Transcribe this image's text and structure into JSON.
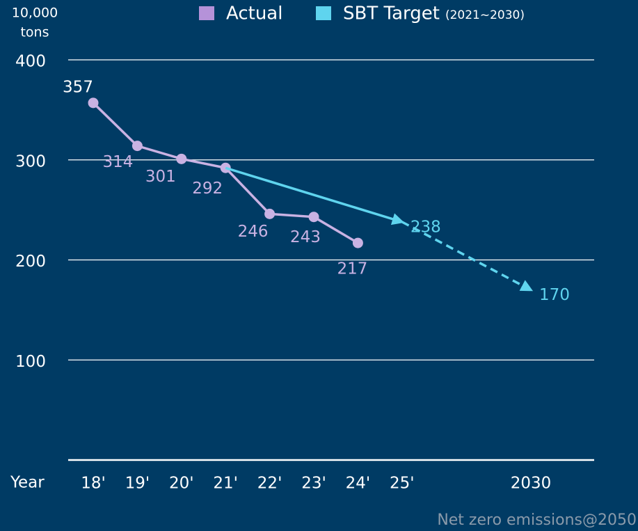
{
  "chart_data": {
    "type": "line",
    "ylabel_lines": [
      "10,000",
      "tons"
    ],
    "xlabel": "Year",
    "categories": [
      "18'",
      "19'",
      "20'",
      "21'",
      "22'",
      "23'",
      "24'",
      "25'",
      "2030"
    ],
    "series": [
      {
        "name": "Actual",
        "color": "#c9b2e3",
        "legend_color": "#b592d9",
        "values": [
          357,
          314,
          301,
          292,
          246,
          243,
          217,
          null,
          null
        ]
      },
      {
        "name": "SBT Target",
        "color": "#5fd4ee",
        "legend_color": "#5fd4ee",
        "legend_note": "(2021~2030)",
        "values": [
          null,
          null,
          null,
          292,
          null,
          null,
          null,
          238,
          170
        ],
        "line_styles": [
          "solid",
          "dashed"
        ]
      }
    ],
    "ylim": [
      0,
      400
    ],
    "yticks": [
      100,
      200,
      300,
      400
    ],
    "grid": true,
    "footnote": "Net zero emissions@2050"
  }
}
